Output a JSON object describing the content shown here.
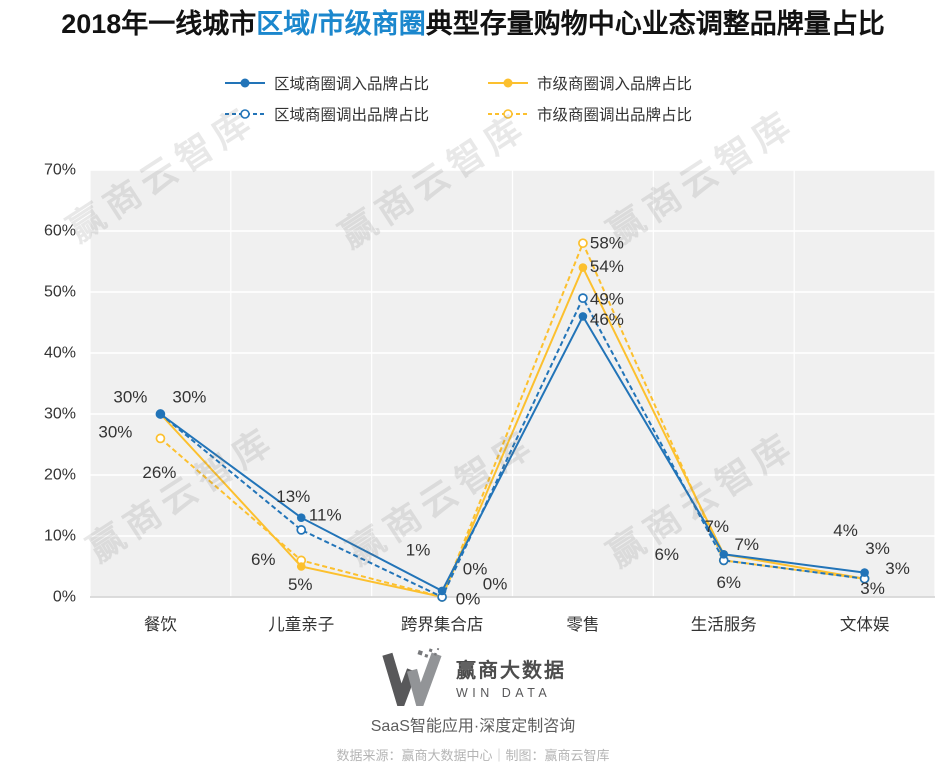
{
  "title": {
    "prefix": "2018年一线城市",
    "highlight": "区域/市级商圈",
    "suffix": "典型存量购物中心业态调整品牌量占比"
  },
  "colors": {
    "region_blue": "#2274b8",
    "city_yellow": "#fcc02e",
    "title_highlight": "#1b87cd",
    "plot_bg": "#f0f0f0",
    "grid": "#ffffff",
    "axis_line": "#c8c8c8",
    "axis_text": "#333333",
    "label_text": "#333333",
    "watermark_gray": "#9a9a9a",
    "source_text": "#b5b5b5"
  },
  "chart_data": {
    "type": "line",
    "title": "2018年一线城市区域/市级商圈典型存量购物中心业态调整品牌量占比",
    "categories": [
      "餐饮",
      "儿童亲子",
      "跨界集合店",
      "零售",
      "生活服务",
      "文体娱"
    ],
    "series": [
      {
        "name": "区域商圈调入品牌占比",
        "color_key": "region_blue",
        "line": "solid",
        "marker": "filled",
        "values": [
          30,
          13,
          1,
          46,
          7,
          4
        ]
      },
      {
        "name": "市级商圈调入品牌占比",
        "color_key": "city_yellow",
        "line": "solid",
        "marker": "filled",
        "values": [
          30,
          5,
          0,
          54,
          7,
          3
        ]
      },
      {
        "name": "区域商圈调出品牌占比",
        "color_key": "region_blue",
        "line": "dashed",
        "marker": "hollow",
        "values": [
          30,
          11,
          0,
          49,
          6,
          3
        ]
      },
      {
        "name": "市级商圈调出品牌占比",
        "color_key": "city_yellow",
        "line": "dashed",
        "marker": "hollow",
        "values": [
          26,
          6,
          0,
          58,
          6,
          3
        ]
      }
    ],
    "ylim": [
      0,
      70
    ],
    "ytick_step": 10,
    "ytick_labels": [
      "0%",
      "10%",
      "20%",
      "30%",
      "40%",
      "50%",
      "60%",
      "70%"
    ],
    "grid": true,
    "legend_position": "top",
    "data_label_format": "{v}%"
  },
  "watermark": {
    "text": "赢商云智库"
  },
  "footer": {
    "brand_cn": "赢商大数据",
    "brand_en": "WIN DATA",
    "tagline": "SaaS智能应用·深度定制咨询",
    "source": "数据来源：赢商大数据中心｜制图：赢商云智库"
  }
}
